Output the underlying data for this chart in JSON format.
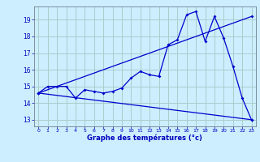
{
  "bg_color": "#cceeff",
  "grid_color": "#aacccc",
  "line_color": "#0000cc",
  "x_ticks": [
    0,
    1,
    2,
    3,
    4,
    5,
    6,
    7,
    8,
    9,
    10,
    11,
    12,
    13,
    14,
    15,
    16,
    17,
    18,
    19,
    20,
    21,
    22,
    23
  ],
  "x_label": "Graphe des températures (°c)",
  "y_ticks": [
    13,
    14,
    15,
    16,
    17,
    18,
    19
  ],
  "ylim": [
    12.6,
    19.8
  ],
  "xlim": [
    -0.5,
    23.5
  ],
  "line_max": {
    "x": [
      0,
      23
    ],
    "y": [
      14.6,
      19.2
    ]
  },
  "line_min": {
    "x": [
      0,
      23
    ],
    "y": [
      14.6,
      13.0
    ]
  },
  "line_actual": {
    "x": [
      0,
      1,
      2,
      3,
      4,
      5,
      6,
      7,
      8,
      9,
      10,
      11,
      12,
      13,
      14,
      15,
      16,
      17,
      18,
      19,
      20,
      21,
      22,
      23
    ],
    "y": [
      14.6,
      15.0,
      15.0,
      15.0,
      14.3,
      14.8,
      14.7,
      14.6,
      14.7,
      14.9,
      15.5,
      15.9,
      15.7,
      15.6,
      17.5,
      17.8,
      19.3,
      19.5,
      17.7,
      19.2,
      17.9,
      16.2,
      14.3,
      13.0
    ]
  }
}
